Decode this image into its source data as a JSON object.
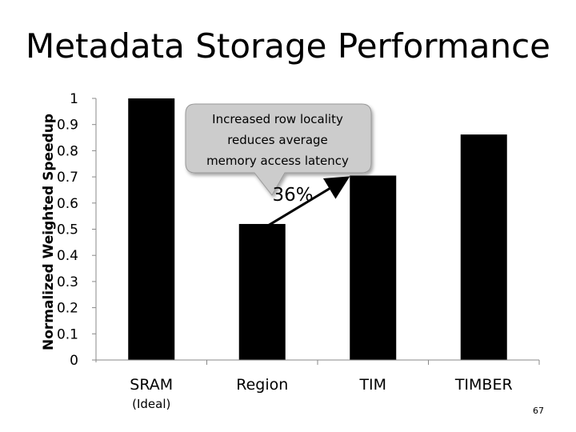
{
  "slide": {
    "title": "Metadata Storage Performance",
    "page_number": "67"
  },
  "chart_data": {
    "type": "bar",
    "categories": [
      "SRAM",
      "Region",
      "TIM",
      "TIMBER"
    ],
    "category_sublabels": [
      "(Ideal)",
      "",
      "",
      ""
    ],
    "values": [
      1.0,
      0.52,
      0.705,
      0.862
    ],
    "ylabel": "Normalized Weighted Speedup",
    "xlabel": "",
    "ylim": [
      0,
      1
    ],
    "yticks": [
      "0",
      "0.1",
      "0.2",
      "0.3",
      "0.4",
      "0.5",
      "0.6",
      "0.7",
      "0.8",
      "0.9",
      "1"
    ],
    "grid": false,
    "bar_color": "#000000",
    "annotations": {
      "callout_lines": [
        "Increased row locality",
        "reduces average",
        "memory access latency"
      ],
      "callout_fill": "#cccccc",
      "arrow_from": "Region",
      "arrow_to": "TIM",
      "arrow_label": "36%"
    }
  }
}
